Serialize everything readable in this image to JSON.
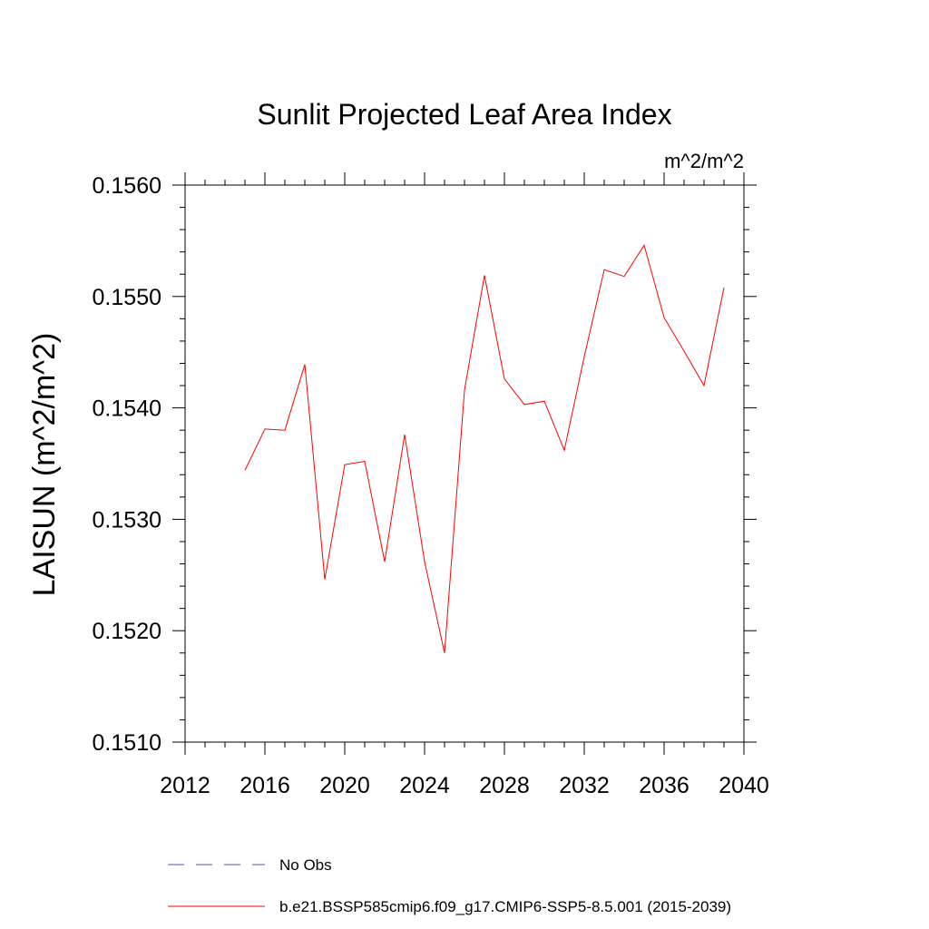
{
  "chart_data": {
    "type": "line",
    "title": "Sunlit Projected Leaf Area Index",
    "units": "m^2/m^2",
    "xlabel": "",
    "ylabel": "LAISUN  (m^2/m^2)",
    "xlim": [
      2012,
      2040
    ],
    "ylim": [
      0.151,
      0.156
    ],
    "x_ticks": [
      2012,
      2016,
      2020,
      2024,
      2028,
      2032,
      2036,
      2040
    ],
    "x_tick_labels": [
      "2012",
      "2016",
      "2020",
      "2024",
      "2028",
      "2032",
      "2036",
      "2040"
    ],
    "y_ticks": [
      0.151,
      0.152,
      0.153,
      0.154,
      0.155,
      0.156
    ],
    "y_tick_labels": [
      "0.1510",
      "0.1520",
      "0.1530",
      "0.1540",
      "0.1550",
      "0.1560"
    ],
    "grid": false,
    "legend_position": "bottom",
    "series": [
      {
        "name": "b.e21.BSSP585cmip6.f09_g17.CMIP6-SSP5-8.5.001 (2015-2039)",
        "color": "#ff0000",
        "style": "solid",
        "x": [
          2015,
          2016,
          2017,
          2018,
          2019,
          2020,
          2021,
          2022,
          2023,
          2024,
          2025,
          2026,
          2027,
          2028,
          2029,
          2030,
          2031,
          2032,
          2033,
          2034,
          2035,
          2036,
          2037,
          2038,
          2039
        ],
        "y": [
          0.15344,
          0.15381,
          0.1538,
          0.15439,
          0.15246,
          0.15349,
          0.15352,
          0.15262,
          0.15376,
          0.15262,
          0.1518,
          0.15416,
          0.15519,
          0.15426,
          0.15403,
          0.15406,
          0.15362,
          0.15446,
          0.15524,
          0.15518,
          0.15546,
          0.15481,
          0.15451,
          0.1542,
          0.15508
        ]
      }
    ],
    "legend": [
      {
        "label": "No Obs",
        "color": "#5050c8",
        "style": "dashed"
      },
      {
        "label": "b.e21.BSSP585cmip6.f09_g17.CMIP6-SSP5-8.5.001 (2015-2039)",
        "color": "#ff0000",
        "style": "solid"
      }
    ]
  }
}
